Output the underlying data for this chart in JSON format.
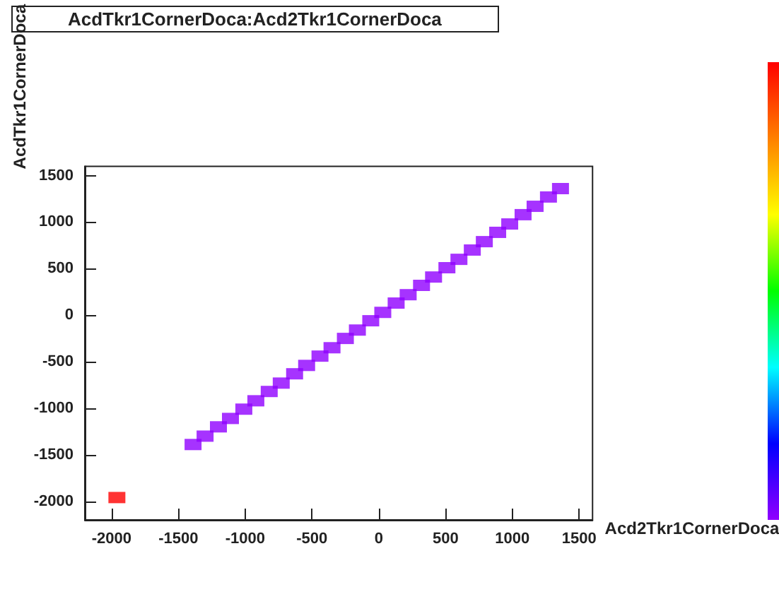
{
  "chart_data": {
    "type": "scatter",
    "title": "AcdTkr1CornerDoca:Acd2Tkr1CornerDoca",
    "xlabel": "Acd2Tkr1CornerDoca",
    "ylabel": "AcdTkr1CornerDoca",
    "xlim": [
      -2200,
      1600
    ],
    "ylim": [
      -2200,
      1600
    ],
    "xticks": [
      -2000,
      -1500,
      -1000,
      -500,
      0,
      500,
      1000,
      1500
    ],
    "yticks": [
      -2000,
      -1500,
      -1000,
      -500,
      0,
      500,
      1000,
      1500
    ],
    "grid": false,
    "marker": "square",
    "series": [
      {
        "color": "#9000ff",
        "x": [
          -1390,
          -1300,
          -1200,
          -1110,
          -1010,
          -920,
          -820,
          -730,
          -630,
          -540,
          -440,
          -350,
          -250,
          -160,
          -60,
          30,
          130,
          220,
          320,
          410,
          510,
          600,
          700,
          790,
          890,
          980,
          1080,
          1170,
          1270,
          1360
        ],
        "values": [
          -1390,
          -1300,
          -1200,
          -1110,
          -1010,
          -920,
          -820,
          -730,
          -630,
          -540,
          -440,
          -350,
          -250,
          -160,
          -60,
          30,
          130,
          220,
          320,
          410,
          510,
          600,
          700,
          790,
          890,
          980,
          1080,
          1170,
          1270,
          1360
        ]
      },
      {
        "color": "#ff0000",
        "x": [
          -1960
        ],
        "values": [
          -1960
        ]
      }
    ]
  }
}
